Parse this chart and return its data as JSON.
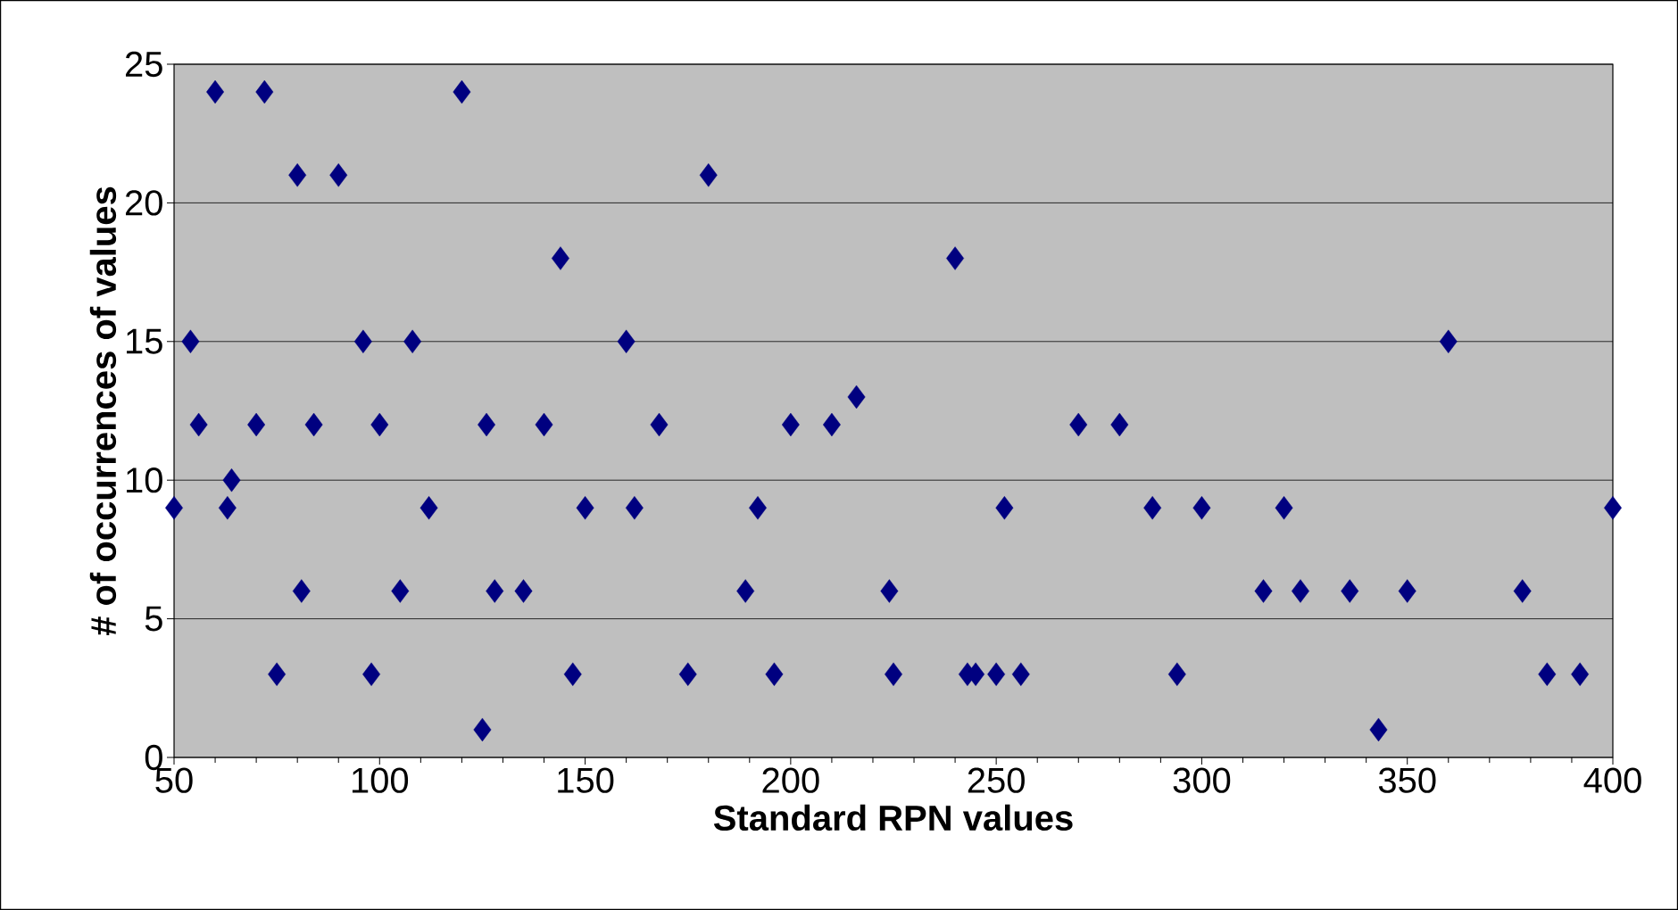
{
  "chart_data": {
    "type": "scatter",
    "xlabel": "Standard RPN values",
    "ylabel": "# of occurrences of values",
    "x": [
      50,
      54,
      56,
      60,
      63,
      64,
      70,
      72,
      75,
      80,
      81,
      84,
      90,
      96,
      98,
      100,
      105,
      108,
      112,
      120,
      125,
      126,
      128,
      135,
      140,
      144,
      147,
      150,
      160,
      162,
      168,
      175,
      180,
      189,
      192,
      196,
      200,
      210,
      216,
      224,
      225,
      240,
      243,
      245,
      250,
      252,
      256,
      270,
      280,
      288,
      294,
      300,
      315,
      320,
      324,
      336,
      343,
      350,
      360,
      378,
      384,
      392,
      400
    ],
    "values": [
      9,
      15,
      12,
      24,
      9,
      10,
      12,
      24,
      3,
      21,
      6,
      12,
      21,
      15,
      3,
      12,
      6,
      15,
      9,
      24,
      1,
      12,
      6,
      6,
      12,
      18,
      3,
      9,
      15,
      9,
      12,
      3,
      21,
      6,
      9,
      3,
      12,
      12,
      13,
      6,
      3,
      18,
      3,
      3,
      3,
      9,
      3,
      12,
      12,
      9,
      3,
      9,
      6,
      9,
      6,
      6,
      1,
      6,
      15,
      6,
      3,
      3,
      9
    ],
    "color": "#000080",
    "marker": "diamond",
    "grid": "y",
    "xlim": [
      50,
      400
    ],
    "xticks": [
      50,
      100,
      150,
      200,
      250,
      300,
      350,
      400
    ],
    "ylim": [
      0,
      25
    ],
    "yticks": [
      0,
      5,
      10,
      15,
      20,
      25
    ]
  }
}
